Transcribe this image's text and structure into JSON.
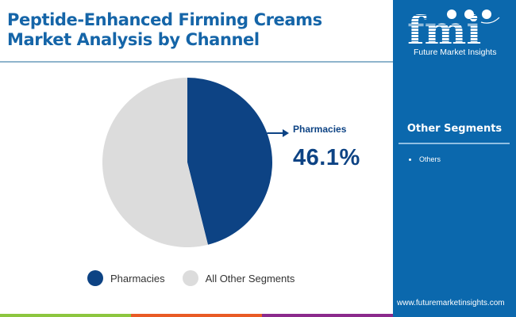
{
  "title": "Peptide-Enhanced Firming Creams Market Analysis by Channel",
  "brand": {
    "logo_letters": "fmi",
    "name": "Future Market Insights",
    "website": "www.futuremarketinsights.com"
  },
  "side_panel": {
    "heading": "Other Segments",
    "items": [
      "Others"
    ]
  },
  "callout": {
    "label": "Pharmacies",
    "value": "46.1%"
  },
  "legend": [
    {
      "label": "Pharmacies",
      "color": "#0d4384"
    },
    {
      "label": "All Other Segments",
      "color": "#dcdcdc"
    }
  ],
  "colors": {
    "title": "#1565a8",
    "side_panel": "#0b68ad",
    "primary": "#0d4384",
    "secondary": "#dcdcdc",
    "bar_green": "#8cc63f",
    "bar_orange": "#e95b25",
    "bar_purple": "#8b2a8c"
  },
  "chart_data": {
    "type": "pie",
    "title": "Peptide-Enhanced Firming Creams Market Analysis by Channel",
    "categories": [
      "Pharmacies",
      "All Other Segments"
    ],
    "values": [
      46.1,
      53.9
    ],
    "colors": [
      "#0d4384",
      "#dcdcdc"
    ],
    "annotations": [
      {
        "label": "Pharmacies",
        "value": "46.1%"
      }
    ],
    "legend_position": "bottom",
    "start_angle": "12 o'clock, clockwise"
  }
}
